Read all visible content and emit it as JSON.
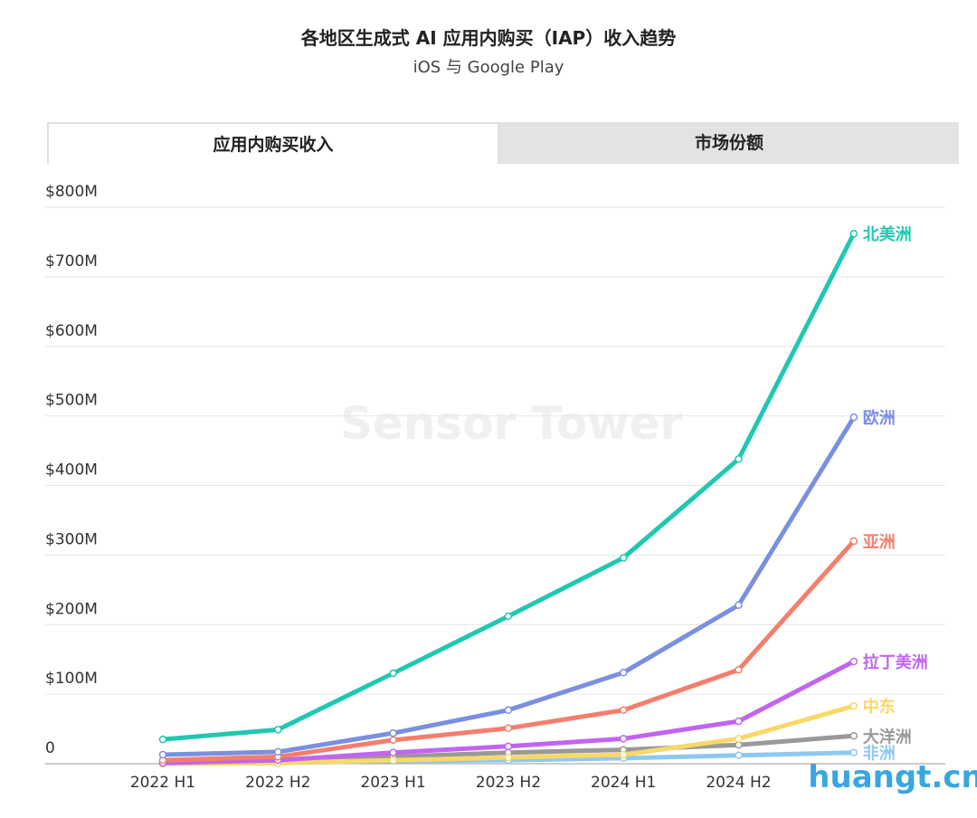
{
  "tabs": [
    "应用内购买收入",
    "市场份额"
  ],
  "chart_data": {
    "type": "line",
    "title": "各地区生成式 AI 应用内购买（IAP）收入趋势",
    "subtitle": "iOS 与 Google Play",
    "categories": [
      "2022 H1",
      "2022 H2",
      "2023 H1",
      "2023 H2",
      "2024 H1",
      "2024 H2",
      null
    ],
    "series": [
      {
        "name": "北美洲",
        "color": "#1fc8b0",
        "values": [
          35,
          49,
          130,
          212,
          296,
          438,
          762
        ]
      },
      {
        "name": "欧洲",
        "color": "#7b8fe0",
        "values": [
          13,
          17,
          44,
          77,
          131,
          228,
          498
        ]
      },
      {
        "name": "亚洲",
        "color": "#f47e6c",
        "values": [
          5,
          10,
          34,
          51,
          77,
          135,
          320
        ]
      },
      {
        "name": "拉丁美洲",
        "color": "#c065f0",
        "values": [
          1,
          5,
          16,
          25,
          36,
          61,
          147
        ]
      },
      {
        "name": "中东",
        "color": "#f8d868",
        "values": [
          0,
          1,
          5,
          9,
          13,
          36,
          83
        ]
      },
      {
        "name": "大洋洲",
        "color": "#999999",
        "values": [
          1,
          4,
          10,
          16,
          20,
          27,
          40
        ]
      },
      {
        "name": "非洲",
        "color": "#8ec9f0",
        "values": [
          0,
          1,
          4,
          5,
          8,
          12,
          16
        ]
      }
    ],
    "ylim": [
      0,
      800
    ],
    "yticks": [
      0,
      {
        "value": 100,
        "label": "$100M"
      },
      {
        "value": 200,
        "label": "$200M"
      },
      {
        "value": 300,
        "label": "$300M"
      },
      {
        "value": 400,
        "label": "$400M"
      },
      {
        "value": 500,
        "label": "$500M"
      },
      {
        "value": 600,
        "label": "$600M"
      },
      {
        "value": 700,
        "label": "$700M"
      },
      {
        "value": 800,
        "label": "$800M"
      }
    ],
    "grid": true,
    "watermarks": [
      "Sensor Tower",
      "huangt.cn"
    ]
  }
}
